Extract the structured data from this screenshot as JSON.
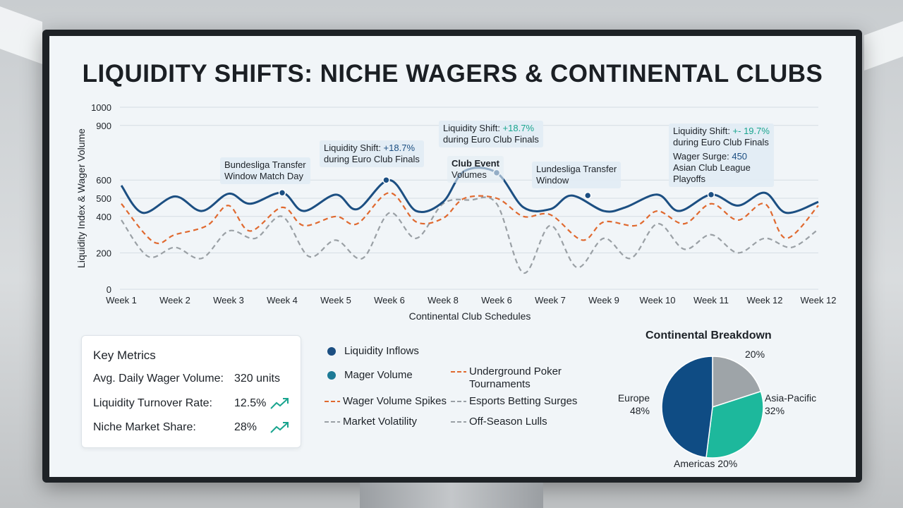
{
  "title": "LIQUIDITY SHIFTS: NICHE WAGERS & CONTINENTAL CLUBS",
  "chart_data": [
    {
      "type": "line",
      "xlabel": "Continental Club Schedules",
      "ylabel": "Liquidity Index & Wager Volume",
      "ylim": [
        0,
        1000
      ],
      "yticks": [
        0,
        200,
        400,
        500,
        600,
        900,
        1000
      ],
      "grid": true,
      "categories": [
        "Week 1",
        "Week 2",
        "Week 3",
        "Week 4",
        "Week 5",
        "Week 6",
        "Week 8",
        "Week 6",
        "Week 7",
        "Week 9",
        "Week 10",
        "Week 11",
        "Week 12",
        "Week 12"
      ],
      "series": [
        {
          "name": "Liquidity Inflows",
          "style": "solid",
          "color": "#1c4f82",
          "x": [
            1,
            1.4,
            2,
            2.5,
            3,
            3.4,
            4,
            4.4,
            5,
            5.4,
            6,
            6.5,
            7,
            7.4,
            8,
            8.5,
            9,
            9.4,
            10,
            10.4,
            11,
            11.4,
            12,
            12.5,
            13,
            13.4,
            14
          ],
          "values": [
            570,
            420,
            510,
            430,
            525,
            470,
            530,
            430,
            520,
            440,
            600,
            430,
            480,
            650,
            640,
            450,
            440,
            515,
            430,
            450,
            520,
            430,
            520,
            460,
            530,
            420,
            480
          ]
        },
        {
          "name": "Wager Volume Spikes",
          "style": "dashed",
          "color": "#e0692f",
          "x": [
            1,
            1.6,
            2,
            2.6,
            3,
            3.4,
            4,
            4.4,
            5,
            5.4,
            6,
            6.5,
            7,
            7.4,
            8,
            8.5,
            9,
            9.6,
            10,
            10.6,
            11,
            11.5,
            12,
            12.5,
            13,
            13.4,
            14
          ],
          "values": [
            470,
            260,
            300,
            350,
            460,
            320,
            450,
            350,
            400,
            360,
            530,
            370,
            390,
            500,
            500,
            400,
            410,
            270,
            370,
            350,
            430,
            360,
            470,
            380,
            470,
            280,
            460
          ]
        },
        {
          "name": "Market Volatility",
          "style": "dashed",
          "color": "#9aa0a5",
          "x": [
            1,
            1.5,
            2,
            2.5,
            3,
            3.5,
            4,
            4.5,
            5,
            5.5,
            6,
            6.5,
            7,
            7.5,
            8,
            8.5,
            9,
            9.5,
            10,
            10.5,
            11,
            11.5,
            12,
            12.5,
            13,
            13.5,
            14
          ],
          "values": [
            380,
            180,
            230,
            170,
            320,
            280,
            400,
            180,
            270,
            170,
            420,
            280,
            470,
            490,
            470,
            90,
            350,
            120,
            280,
            170,
            360,
            220,
            300,
            200,
            280,
            230,
            330
          ]
        }
      ],
      "annotations": [
        {
          "text": "Bundesliga Transfer Window Match Day",
          "x": 3.5
        },
        {
          "text": "Liquidity Shift: +18.7% during Euro Club Finals",
          "x": 6
        },
        {
          "text": "Liquidity Shift: +18.7% during Euro Club Finals",
          "x": 8
        },
        {
          "text": "Club Event Volumes",
          "x": 7.5
        },
        {
          "text": "Lundesliga Transfer Window",
          "x": 9
        },
        {
          "text": "Liquidity Shift: +- 19.7% during Euro Club Finals",
          "x": 12
        },
        {
          "text": "Wager Surge: 450 Asian Club League Playoffs",
          "x": 12
        }
      ]
    },
    {
      "type": "pie",
      "title": "Continental Breakdown",
      "slices": [
        {
          "label": "Europe",
          "value": 48,
          "color": "#0f4c84"
        },
        {
          "label": "Asia-Pacific",
          "value": 32,
          "color": "#1db89c"
        },
        {
          "label": "Americas",
          "value": 20,
          "color": "#9ea4a8"
        }
      ]
    }
  ],
  "callouts": {
    "c1": {
      "line1": "Bundesliga Transfer",
      "line2": "Window Match Day"
    },
    "c2": {
      "line1a": "Liquidity Shift: ",
      "line1b": "+18.7%",
      "line2": "during Euro Club Finals"
    },
    "c3": {
      "line1a": "Liquidity Shift: ",
      "line1b": "+18.7%",
      "line2": "during Euro Club Finals"
    },
    "c4": {
      "line1": "Club Event",
      "line2": "Volumes"
    },
    "c5": {
      "line1": "Lundesliga Transfer",
      "line2": "Window"
    },
    "c6": {
      "line1a": "Liquidity Shift: ",
      "line1b": "+- 19.7%",
      "line2": "during Euro Club Finals"
    },
    "c7": {
      "line1a": "Wager Surge: ",
      "line1b": "450",
      "line2": "Asian Club League",
      "line3": "Playoffs"
    }
  },
  "metrics": {
    "title": "Key Metrics",
    "rows": [
      {
        "label": "Avg. Daily Wager Volume:",
        "value": "320 units",
        "trend": ""
      },
      {
        "label": "Liquidity Turnover Rate:",
        "value": "12.5%",
        "trend": "trend-up-icon"
      },
      {
        "label": "Niche Market Share:",
        "value": "28%",
        "trend": "trend-up-icon"
      }
    ],
    "trend_color": "#1aa58f"
  },
  "legend": [
    {
      "label": "Liquidity Inflows",
      "marker": "dot",
      "color": "#1c4f82"
    },
    {
      "label": "Mager Volume",
      "marker": "dot",
      "color": "#1d7a96"
    },
    {
      "label": "Wager Volume Spikes",
      "marker": "dash",
      "color": "#e0692f"
    },
    {
      "label": "Market Volatility",
      "marker": "dash",
      "color": "#9aa0a5"
    },
    {
      "label": "Underground Poker Tournaments",
      "line1": "Underground Poker",
      "line2": "Tournaments",
      "marker": "dash",
      "color": "#e0692f"
    },
    {
      "label": "Esports Betting Surges",
      "marker": "dash",
      "color": "#9aa0a5"
    },
    {
      "label": "Off-Season Lulls",
      "marker": "dash",
      "color": "#9aa0a5"
    }
  ],
  "pie_labels": {
    "europe": {
      "name": "Europe",
      "pct": "48%"
    },
    "asia": {
      "name": "Asia-Pacific",
      "pct": "32%"
    },
    "americas": {
      "text": "Americas 20%"
    },
    "top": {
      "text": "20%"
    }
  }
}
